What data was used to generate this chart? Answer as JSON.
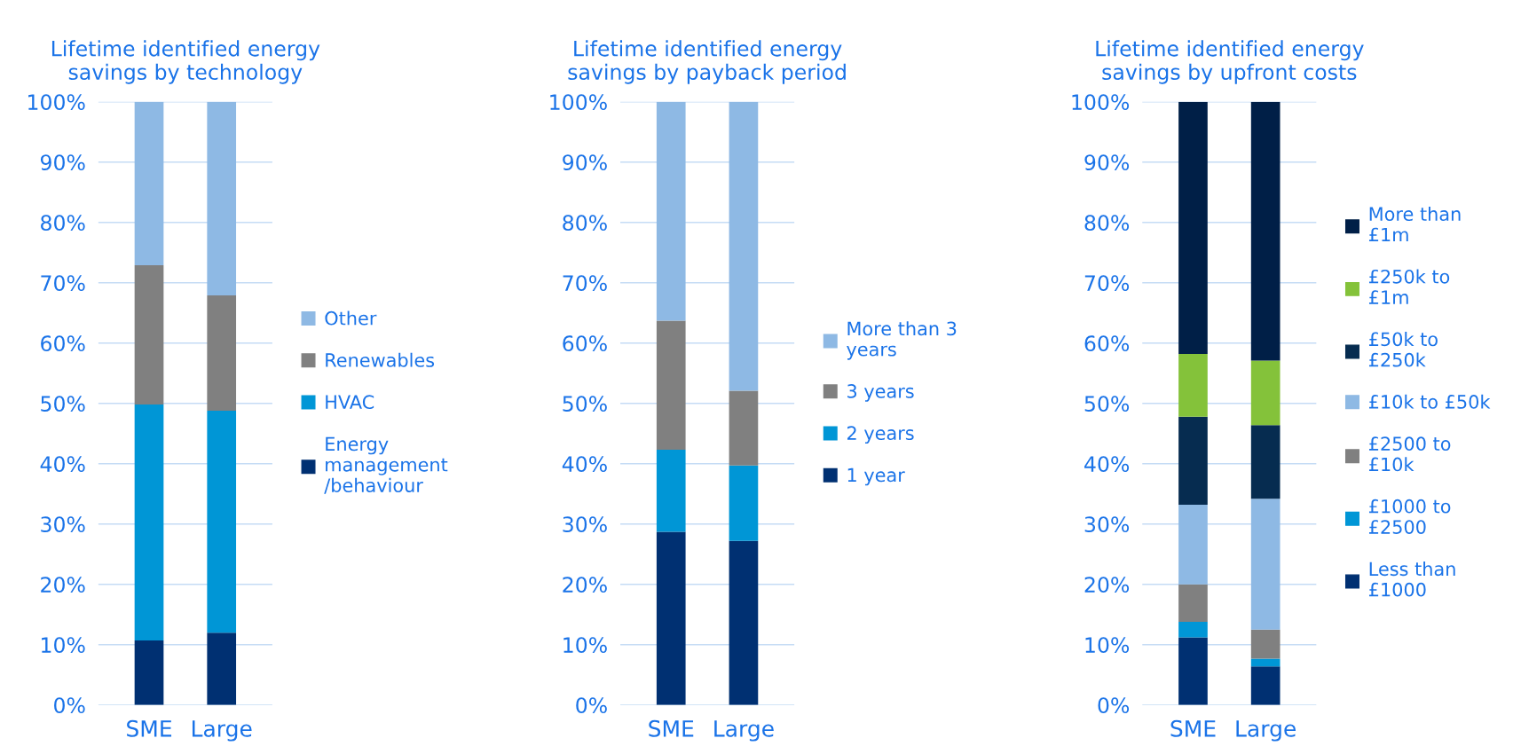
{
  "chart_data": [
    {
      "type": "bar",
      "title": "Lifetime identified energy\nsavings by technology",
      "categories": [
        "SME",
        "Large"
      ],
      "stacked": true,
      "ylim": [
        0,
        100
      ],
      "yticks": [
        {
          "value": 0,
          "label": "0%"
        },
        {
          "value": 10,
          "label": "10%"
        },
        {
          "value": 20,
          "label": "20%"
        },
        {
          "value": 30,
          "label": "30%"
        },
        {
          "value": 40,
          "label": "40%"
        },
        {
          "value": 50,
          "label": "50%"
        },
        {
          "value": 60,
          "label": "60%"
        },
        {
          "value": 70,
          "label": "70%"
        },
        {
          "value": 80,
          "label": "80%"
        },
        {
          "value": 90,
          "label": "90%"
        },
        {
          "value": 100,
          "label": "100%"
        }
      ],
      "grid": "y",
      "legend": "right",
      "series": [
        {
          "name": "Energy\nmanagement\n/behaviour",
          "color": "#003072",
          "values": [
            10.7,
            12.0
          ]
        },
        {
          "name": "HVAC",
          "color": "#0096d6",
          "values": [
            39.1,
            36.8
          ]
        },
        {
          "name": "Renewables",
          "color": "#808080",
          "values": [
            23.1,
            19.1
          ]
        },
        {
          "name": "Other",
          "color": "#8eb9e4",
          "values": [
            27.1,
            32.1
          ]
        }
      ]
    },
    {
      "type": "bar",
      "title": "Lifetime identified energy\nsavings by payback period",
      "categories": [
        "SME",
        "Large"
      ],
      "stacked": true,
      "ylim": [
        0,
        100
      ],
      "yticks": [
        {
          "value": 0,
          "label": "0%"
        },
        {
          "value": 10,
          "label": "10%"
        },
        {
          "value": 20,
          "label": "20%"
        },
        {
          "value": 30,
          "label": "30%"
        },
        {
          "value": 40,
          "label": "40%"
        },
        {
          "value": 50,
          "label": "50%"
        },
        {
          "value": 60,
          "label": "60%"
        },
        {
          "value": 70,
          "label": "70%"
        },
        {
          "value": 80,
          "label": "80%"
        },
        {
          "value": 90,
          "label": "90%"
        },
        {
          "value": 100,
          "label": "100%"
        }
      ],
      "grid": "y",
      "legend": "right",
      "series": [
        {
          "name": "1 year",
          "color": "#003072",
          "values": [
            28.7,
            27.2
          ]
        },
        {
          "name": "2 years",
          "color": "#0096d6",
          "values": [
            13.6,
            12.5
          ]
        },
        {
          "name": "3 years",
          "color": "#808080",
          "values": [
            21.4,
            12.4
          ]
        },
        {
          "name": "More than 3\nyears",
          "color": "#8eb9e4",
          "values": [
            36.3,
            47.9
          ]
        }
      ]
    },
    {
      "type": "bar",
      "title": "Lifetime identified energy\nsavings by upfront costs",
      "categories": [
        "SME",
        "Large"
      ],
      "stacked": true,
      "ylim": [
        0,
        100
      ],
      "yticks": [
        {
          "value": 0,
          "label": "0%"
        },
        {
          "value": 10,
          "label": "10%"
        },
        {
          "value": 20,
          "label": "20%"
        },
        {
          "value": 30,
          "label": "30%"
        },
        {
          "value": 40,
          "label": "40%"
        },
        {
          "value": 50,
          "label": "50%"
        },
        {
          "value": 60,
          "label": "60%"
        },
        {
          "value": 70,
          "label": "70%"
        },
        {
          "value": 80,
          "label": "80%"
        },
        {
          "value": 90,
          "label": "90%"
        },
        {
          "value": 100,
          "label": "100%"
        }
      ],
      "grid": "y",
      "legend": "right",
      "series": [
        {
          "name": "Less than\n£1000",
          "color": "#003072",
          "values": [
            11.2,
            6.4
          ]
        },
        {
          "name": "£1000 to\n£2500",
          "color": "#0096d6",
          "values": [
            2.6,
            1.3
          ]
        },
        {
          "name": "£2500 to\n£10k",
          "color": "#808080",
          "values": [
            6.2,
            4.8
          ]
        },
        {
          "name": "£10k to £50k",
          "color": "#8eb9e4",
          "values": [
            13.2,
            21.7
          ]
        },
        {
          "name": "£50k to\n£250k",
          "color": "#062c50",
          "values": [
            14.6,
            12.2
          ]
        },
        {
          "name": "£250k to\n£1m",
          "color": "#84c23a",
          "values": [
            10.4,
            10.7
          ]
        },
        {
          "name": "More than\n£1m",
          "color": "#001f47",
          "values": [
            41.8,
            42.9
          ]
        }
      ]
    }
  ]
}
